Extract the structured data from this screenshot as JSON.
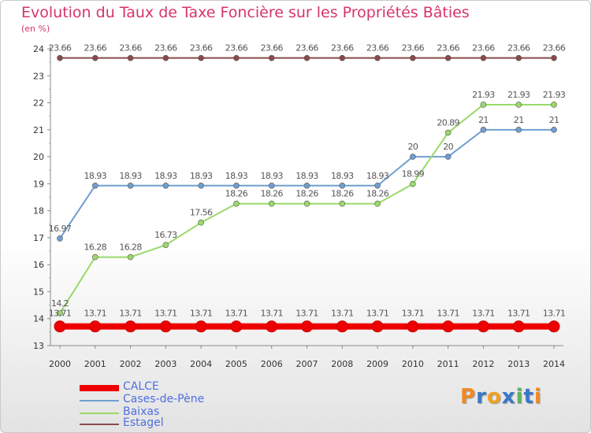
{
  "chart_data": {
    "type": "line",
    "title": "Evolution du Taux de Taxe Foncière sur les Propriétés Bâties",
    "subtitle": "(en %)",
    "x": [
      2000,
      2001,
      2002,
      2003,
      2004,
      2005,
      2006,
      2007,
      2008,
      2009,
      2010,
      2011,
      2012,
      2013,
      2014
    ],
    "ylim": [
      13,
      24
    ],
    "yticks": [
      13,
      14,
      15,
      16,
      17,
      18,
      19,
      20,
      21,
      22,
      23,
      24
    ],
    "grid": false,
    "series": [
      {
        "name": "CALCE",
        "color": "#ee0000",
        "values": [
          13.71,
          13.71,
          13.71,
          13.71,
          13.71,
          13.71,
          13.71,
          13.71,
          13.71,
          13.71,
          13.71,
          13.71,
          13.71,
          13.71,
          13.71
        ],
        "labels": [
          "13.71",
          "13.71",
          "13.71",
          "13.71",
          "13.71",
          "13.71",
          "13.71",
          "13.71",
          "13.71",
          "13.71",
          "13.71",
          "13.71",
          "13.71",
          "13.71",
          "13.71"
        ]
      },
      {
        "name": "Cases-de-Pène",
        "color": "#6f9fd0",
        "values": [
          16.97,
          18.93,
          18.93,
          18.93,
          18.93,
          18.93,
          18.93,
          18.93,
          18.93,
          18.93,
          20,
          20,
          21,
          21,
          21
        ],
        "labels": [
          "16.97",
          "18.93",
          "18.93",
          "18.93",
          "18.93",
          "18.93",
          "18.93",
          "18.93",
          "18.93",
          "18.93",
          "20",
          "20",
          "21",
          "21",
          "21"
        ]
      },
      {
        "name": "Baixas",
        "color": "#9ad96a",
        "values": [
          14.2,
          16.28,
          16.28,
          16.73,
          17.56,
          18.26,
          18.26,
          18.26,
          18.26,
          18.26,
          18.99,
          20.89,
          21.93,
          21.93,
          21.93
        ],
        "labels": [
          "14.2",
          "16.28",
          "16.28",
          "16.73",
          "17.56",
          "18.26",
          "18.26",
          "18.26",
          "18.26",
          "18.26",
          "18.99",
          "20.89",
          "21.93",
          "21.93",
          "21.93"
        ]
      },
      {
        "name": "Estagel",
        "color": "#8b4a4a",
        "values": [
          23.66,
          23.66,
          23.66,
          23.66,
          23.66,
          23.66,
          23.66,
          23.66,
          23.66,
          23.66,
          23.66,
          23.66,
          23.66,
          23.66,
          23.66
        ],
        "labels": [
          "23.66",
          "23.66",
          "23.66",
          "23.66",
          "23.66",
          "23.66",
          "23.66",
          "23.66",
          "23.66",
          "23.66",
          "23.66",
          "23.66",
          "23.66",
          "23.66",
          "23.66"
        ]
      }
    ]
  },
  "logo": {
    "text": "Proxiti"
  }
}
